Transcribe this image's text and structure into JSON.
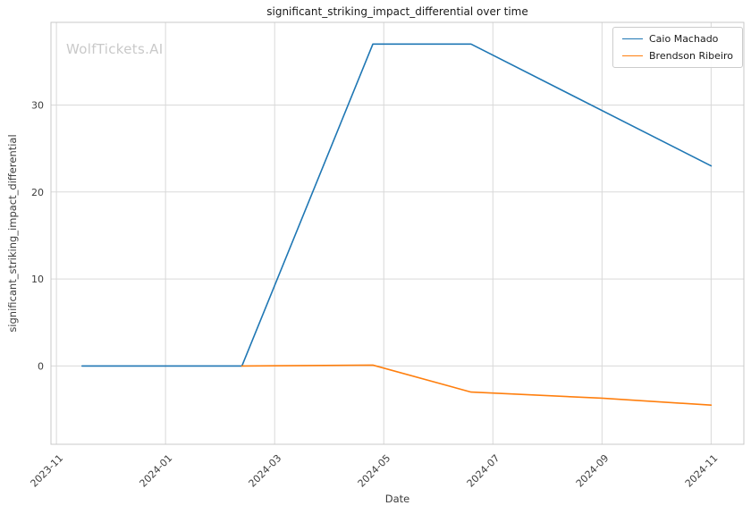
{
  "watermark": "WolfTickets.AI",
  "chart_data": {
    "type": "line",
    "title": "significant_striking_impact_differential over time",
    "xlabel": "Date",
    "ylabel": "significant_striking_impact_differential",
    "grid": true,
    "legend_position": "upper right",
    "x_unit": "months since 2023-11-01",
    "xlim": [
      -0.1,
      12.6
    ],
    "ylim": [
      -9,
      39.5
    ],
    "x_ticks": [
      {
        "t": 0,
        "label": "2023-11"
      },
      {
        "t": 2,
        "label": "2024-01"
      },
      {
        "t": 4,
        "label": "2024-03"
      },
      {
        "t": 6,
        "label": "2024-05"
      },
      {
        "t": 8,
        "label": "2024-07"
      },
      {
        "t": 10,
        "label": "2024-09"
      },
      {
        "t": 12,
        "label": "2024-11"
      }
    ],
    "y_ticks": [
      0,
      10,
      20,
      30
    ],
    "series": [
      {
        "name": "Caio Machado",
        "color": "#1f77b4",
        "points": [
          {
            "date": "2023-11-15",
            "t": 0.47,
            "y": 0
          },
          {
            "date": "2024-02-12",
            "t": 3.4,
            "y": 0
          },
          {
            "date": "2024-04-25",
            "t": 5.8,
            "y": 37
          },
          {
            "date": "2024-06-19",
            "t": 7.6,
            "y": 37
          },
          {
            "date": "2024-11-01",
            "t": 12,
            "y": 23
          }
        ]
      },
      {
        "name": "Brendson Ribeiro",
        "color": "#ff7f0e",
        "points": [
          {
            "date": "2024-02-12",
            "t": 3.4,
            "y": 0
          },
          {
            "date": "2024-04-25",
            "t": 5.8,
            "y": 0.1
          },
          {
            "date": "2024-06-19",
            "t": 7.6,
            "y": -3
          },
          {
            "date": "2024-09-01",
            "t": 10,
            "y": -3.7
          },
          {
            "date": "2024-11-01",
            "t": 12,
            "y": -4.5
          }
        ]
      }
    ]
  }
}
